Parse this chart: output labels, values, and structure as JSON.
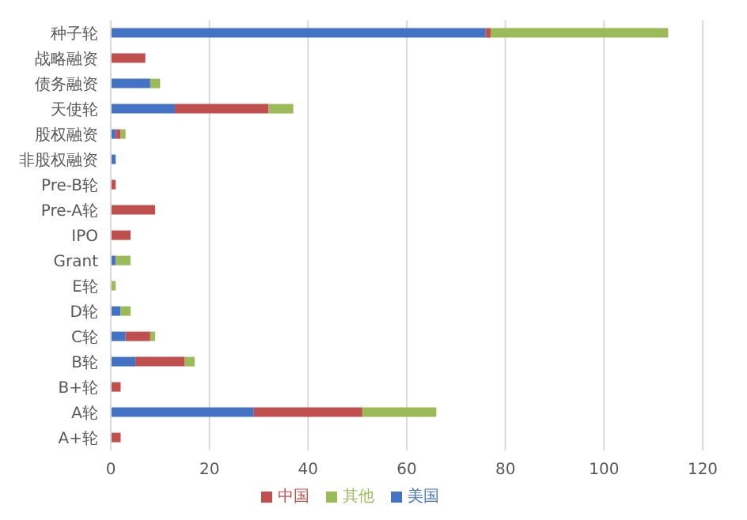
{
  "chart_data": {
    "type": "bar",
    "orientation": "horizontal",
    "stacked": true,
    "categories": [
      "种子轮",
      "战略融资",
      "债务融资",
      "天使轮",
      "股权融资",
      "非股权融资",
      "Pre-B轮",
      "Pre-A轮",
      "IPO",
      "Grant",
      "E轮",
      "D轮",
      "C轮",
      "B轮",
      "B+轮",
      "A轮",
      "A+轮"
    ],
    "series": [
      {
        "name": "美国",
        "color": "#4472c4",
        "values": [
          76,
          0,
          8,
          13,
          1,
          1,
          0,
          0,
          0,
          1,
          0,
          2,
          3,
          5,
          0,
          29,
          0
        ]
      },
      {
        "name": "中国",
        "color": "#c0504d",
        "values": [
          1,
          7,
          0,
          19,
          1,
          0,
          1,
          9,
          4,
          0,
          0,
          0,
          5,
          10,
          2,
          22,
          2
        ]
      },
      {
        "name": "其他",
        "color": "#9bbb59",
        "values": [
          36,
          0,
          2,
          5,
          1,
          0,
          0,
          0,
          0,
          3,
          1,
          2,
          1,
          2,
          0,
          15,
          0
        ]
      }
    ],
    "xlim": [
      0,
      120
    ],
    "xticks": [
      0,
      20,
      40,
      60,
      80,
      100,
      120
    ],
    "grid": "x",
    "legend": "bottom"
  }
}
